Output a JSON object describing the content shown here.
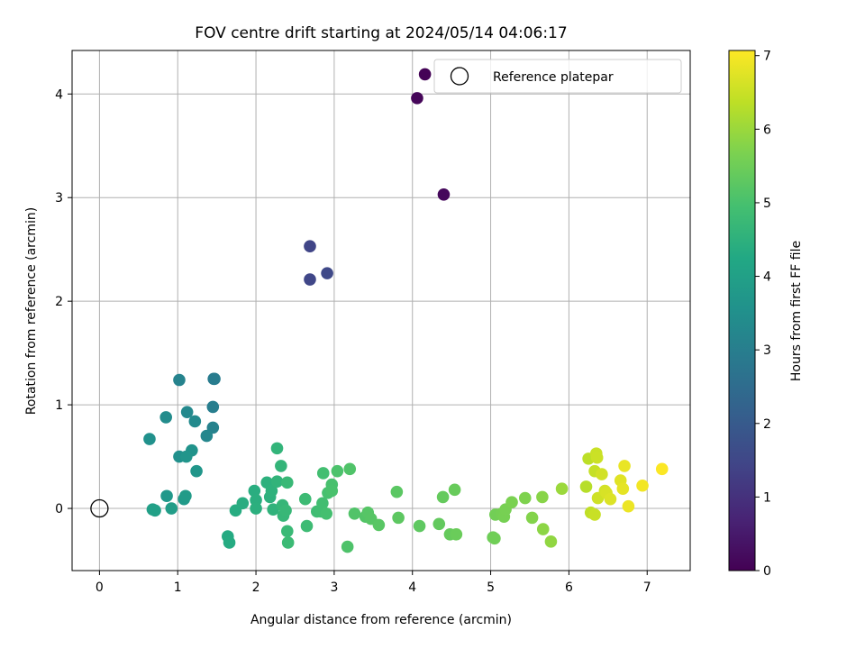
{
  "chart_data": {
    "type": "scatter",
    "title": "FOV centre drift starting at 2024/05/14 04:06:17",
    "xlabel": "Angular distance from reference (arcmin)",
    "ylabel": "Rotation from reference (arcmin)",
    "xlim": [
      -0.35,
      7.55
    ],
    "ylim": [
      -0.6,
      4.42
    ],
    "xticks": [
      0,
      1,
      2,
      3,
      4,
      5,
      6,
      7
    ],
    "yticks": [
      0,
      1,
      2,
      3,
      4
    ],
    "grid": true,
    "legend": {
      "placement": "top-right",
      "entries": [
        {
          "label": "Reference platepar",
          "marker": "open-circle"
        }
      ]
    },
    "reference_point": {
      "x": 0,
      "y": 0
    },
    "colorbar": {
      "label": "Hours from first FF file",
      "colormap": "viridis",
      "range": [
        0,
        7.07
      ],
      "ticks": [
        0,
        1,
        2,
        3,
        4,
        5,
        6,
        7
      ]
    },
    "points": [
      {
        "x": 4.16,
        "y": 4.19,
        "c": 0.05
      },
      {
        "x": 4.06,
        "y": 3.96,
        "c": 0.1
      },
      {
        "x": 4.4,
        "y": 3.03,
        "c": 0.15
      },
      {
        "x": 2.69,
        "y": 2.53,
        "c": 1.45
      },
      {
        "x": 2.69,
        "y": 2.21,
        "c": 1.5
      },
      {
        "x": 2.91,
        "y": 2.27,
        "c": 1.55
      },
      {
        "x": 1.02,
        "y": 1.24,
        "c": 3.15
      },
      {
        "x": 1.46,
        "y": 1.25,
        "c": 2.9
      },
      {
        "x": 1.47,
        "y": 1.25,
        "c": 2.95
      },
      {
        "x": 1.45,
        "y": 0.98,
        "c": 3.0
      },
      {
        "x": 1.45,
        "y": 0.78,
        "c": 3.1
      },
      {
        "x": 1.37,
        "y": 0.7,
        "c": 3.25
      },
      {
        "x": 1.12,
        "y": 0.93,
        "c": 3.3
      },
      {
        "x": 1.22,
        "y": 0.84,
        "c": 3.35
      },
      {
        "x": 0.85,
        "y": 0.88,
        "c": 3.4
      },
      {
        "x": 0.64,
        "y": 0.67,
        "c": 3.55
      },
      {
        "x": 1.18,
        "y": 0.56,
        "c": 3.6
      },
      {
        "x": 1.02,
        "y": 0.5,
        "c": 3.5
      },
      {
        "x": 1.11,
        "y": 0.5,
        "c": 3.65
      },
      {
        "x": 1.24,
        "y": 0.36,
        "c": 3.7
      },
      {
        "x": 0.86,
        "y": 0.12,
        "c": 3.75
      },
      {
        "x": 1.08,
        "y": 0.09,
        "c": 3.8
      },
      {
        "x": 1.1,
        "y": 0.12,
        "c": 3.85
      },
      {
        "x": 0.92,
        "y": 0.0,
        "c": 3.9
      },
      {
        "x": 0.68,
        "y": -0.01,
        "c": 3.95
      },
      {
        "x": 0.71,
        "y": -0.02,
        "c": 4.0
      },
      {
        "x": 1.64,
        "y": -0.27,
        "c": 4.3
      },
      {
        "x": 1.66,
        "y": -0.33,
        "c": 4.32
      },
      {
        "x": 1.74,
        "y": -0.02,
        "c": 4.35
      },
      {
        "x": 1.83,
        "y": 0.05,
        "c": 4.38
      },
      {
        "x": 1.98,
        "y": 0.17,
        "c": 4.4
      },
      {
        "x": 2.0,
        "y": 0.08,
        "c": 4.42
      },
      {
        "x": 2.0,
        "y": 0.0,
        "c": 4.45
      },
      {
        "x": 2.14,
        "y": 0.25,
        "c": 4.48
      },
      {
        "x": 2.18,
        "y": 0.11,
        "c": 4.5
      },
      {
        "x": 2.2,
        "y": 0.17,
        "c": 4.52
      },
      {
        "x": 2.22,
        "y": -0.01,
        "c": 4.55
      },
      {
        "x": 2.27,
        "y": 0.26,
        "c": 4.58
      },
      {
        "x": 2.27,
        "y": 0.58,
        "c": 4.6
      },
      {
        "x": 2.32,
        "y": 0.41,
        "c": 4.62
      },
      {
        "x": 2.34,
        "y": 0.03,
        "c": 4.65
      },
      {
        "x": 2.35,
        "y": -0.07,
        "c": 4.68
      },
      {
        "x": 2.38,
        "y": -0.02,
        "c": 4.7
      },
      {
        "x": 2.4,
        "y": 0.25,
        "c": 4.72
      },
      {
        "x": 2.4,
        "y": -0.22,
        "c": 4.75
      },
      {
        "x": 2.41,
        "y": -0.33,
        "c": 4.78
      },
      {
        "x": 2.63,
        "y": 0.09,
        "c": 4.8
      },
      {
        "x": 2.65,
        "y": -0.17,
        "c": 4.82
      },
      {
        "x": 2.78,
        "y": -0.03,
        "c": 4.85
      },
      {
        "x": 2.83,
        "y": -0.03,
        "c": 4.88
      },
      {
        "x": 2.85,
        "y": 0.05,
        "c": 4.9
      },
      {
        "x": 2.86,
        "y": 0.34,
        "c": 4.92
      },
      {
        "x": 2.9,
        "y": -0.05,
        "c": 4.95
      },
      {
        "x": 2.92,
        "y": 0.15,
        "c": 4.98
      },
      {
        "x": 2.97,
        "y": 0.23,
        "c": 5.0
      },
      {
        "x": 2.97,
        "y": 0.17,
        "c": 5.02
      },
      {
        "x": 3.04,
        "y": 0.36,
        "c": 5.05
      },
      {
        "x": 3.17,
        "y": -0.37,
        "c": 5.08
      },
      {
        "x": 3.2,
        "y": 0.38,
        "c": 5.1
      },
      {
        "x": 3.26,
        "y": -0.05,
        "c": 5.12
      },
      {
        "x": 3.4,
        "y": -0.08,
        "c": 5.15
      },
      {
        "x": 3.43,
        "y": -0.04,
        "c": 5.18
      },
      {
        "x": 3.47,
        "y": -0.1,
        "c": 5.2
      },
      {
        "x": 3.57,
        "y": -0.16,
        "c": 5.22
      },
      {
        "x": 3.8,
        "y": 0.16,
        "c": 5.25
      },
      {
        "x": 3.82,
        "y": -0.09,
        "c": 5.28
      },
      {
        "x": 4.09,
        "y": -0.17,
        "c": 5.3
      },
      {
        "x": 4.34,
        "y": -0.15,
        "c": 5.35
      },
      {
        "x": 4.39,
        "y": 0.11,
        "c": 5.38
      },
      {
        "x": 4.48,
        "y": -0.25,
        "c": 5.4
      },
      {
        "x": 4.54,
        "y": 0.18,
        "c": 5.42
      },
      {
        "x": 4.56,
        "y": -0.25,
        "c": 5.45
      },
      {
        "x": 5.03,
        "y": -0.28,
        "c": 5.5
      },
      {
        "x": 5.05,
        "y": -0.29,
        "c": 5.52
      },
      {
        "x": 5.06,
        "y": -0.06,
        "c": 5.55
      },
      {
        "x": 5.14,
        "y": -0.05,
        "c": 5.58
      },
      {
        "x": 5.17,
        "y": -0.08,
        "c": 5.6
      },
      {
        "x": 5.19,
        "y": -0.01,
        "c": 5.62
      },
      {
        "x": 5.27,
        "y": 0.06,
        "c": 5.65
      },
      {
        "x": 5.44,
        "y": 0.1,
        "c": 5.7
      },
      {
        "x": 5.53,
        "y": -0.09,
        "c": 5.75
      },
      {
        "x": 5.66,
        "y": 0.11,
        "c": 5.8
      },
      {
        "x": 5.67,
        "y": -0.2,
        "c": 5.85
      },
      {
        "x": 5.77,
        "y": -0.32,
        "c": 5.9
      },
      {
        "x": 5.91,
        "y": 0.19,
        "c": 6.0
      },
      {
        "x": 6.22,
        "y": 0.21,
        "c": 6.3
      },
      {
        "x": 6.25,
        "y": 0.48,
        "c": 6.35
      },
      {
        "x": 6.28,
        "y": -0.04,
        "c": 6.4
      },
      {
        "x": 6.33,
        "y": 0.36,
        "c": 6.45
      },
      {
        "x": 6.33,
        "y": -0.06,
        "c": 6.48
      },
      {
        "x": 6.35,
        "y": 0.53,
        "c": 6.5
      },
      {
        "x": 6.36,
        "y": 0.49,
        "c": 6.52
      },
      {
        "x": 6.37,
        "y": 0.1,
        "c": 6.55
      },
      {
        "x": 6.42,
        "y": 0.33,
        "c": 6.58
      },
      {
        "x": 6.46,
        "y": 0.17,
        "c": 6.6
      },
      {
        "x": 6.48,
        "y": 0.15,
        "c": 6.65
      },
      {
        "x": 6.53,
        "y": 0.09,
        "c": 6.7
      },
      {
        "x": 6.66,
        "y": 0.27,
        "c": 6.75
      },
      {
        "x": 6.69,
        "y": 0.19,
        "c": 6.8
      },
      {
        "x": 6.71,
        "y": 0.41,
        "c": 6.85
      },
      {
        "x": 6.76,
        "y": 0.02,
        "c": 6.88
      },
      {
        "x": 6.94,
        "y": 0.22,
        "c": 6.95
      },
      {
        "x": 7.19,
        "y": 0.38,
        "c": 7.05
      }
    ]
  }
}
